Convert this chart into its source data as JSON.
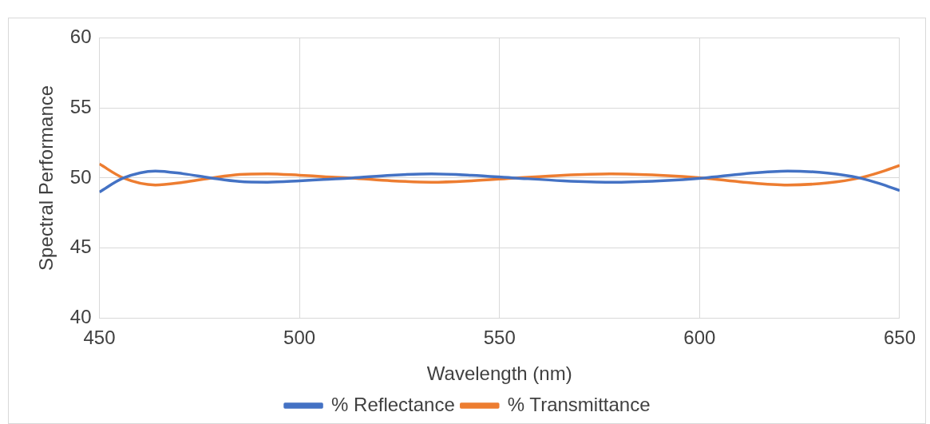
{
  "chart_data": {
    "type": "line",
    "xlabel": "Wavelength (nm)",
    "ylabel": "Spectral Performance",
    "x": [
      450,
      456,
      464,
      471,
      478,
      485,
      492,
      500,
      506,
      513,
      523,
      533,
      543,
      554,
      566,
      578,
      590,
      601,
      611,
      622,
      632,
      640,
      645,
      650
    ],
    "series": [
      {
        "name": "% Reflectance",
        "color": "#4472c4",
        "values": [
          49.0,
          50,
          50.5,
          50.3,
          50,
          49.75,
          49.7,
          49.8,
          49.9,
          50,
          50.2,
          50.3,
          50.2,
          50,
          49.8,
          49.7,
          49.8,
          50,
          50.3,
          50.5,
          50.35,
          50,
          49.6,
          49.1
        ]
      },
      {
        "name": "% Transmittance",
        "color": "#ed7d31",
        "values": [
          51.0,
          50,
          49.5,
          49.7,
          50,
          50.25,
          50.3,
          50.2,
          50.1,
          50,
          49.8,
          49.7,
          49.8,
          50,
          50.2,
          50.3,
          50.2,
          50,
          49.7,
          49.5,
          49.65,
          50,
          50.4,
          50.9
        ]
      }
    ],
    "xlim": [
      450,
      650
    ],
    "xticks": [
      450,
      500,
      550,
      600,
      650
    ],
    "ylim": [
      40,
      60
    ],
    "yticks": [
      40,
      45,
      50,
      55,
      60
    ],
    "grid": true,
    "legend": "bottom",
    "marker": "none",
    "line_style": "solid"
  }
}
